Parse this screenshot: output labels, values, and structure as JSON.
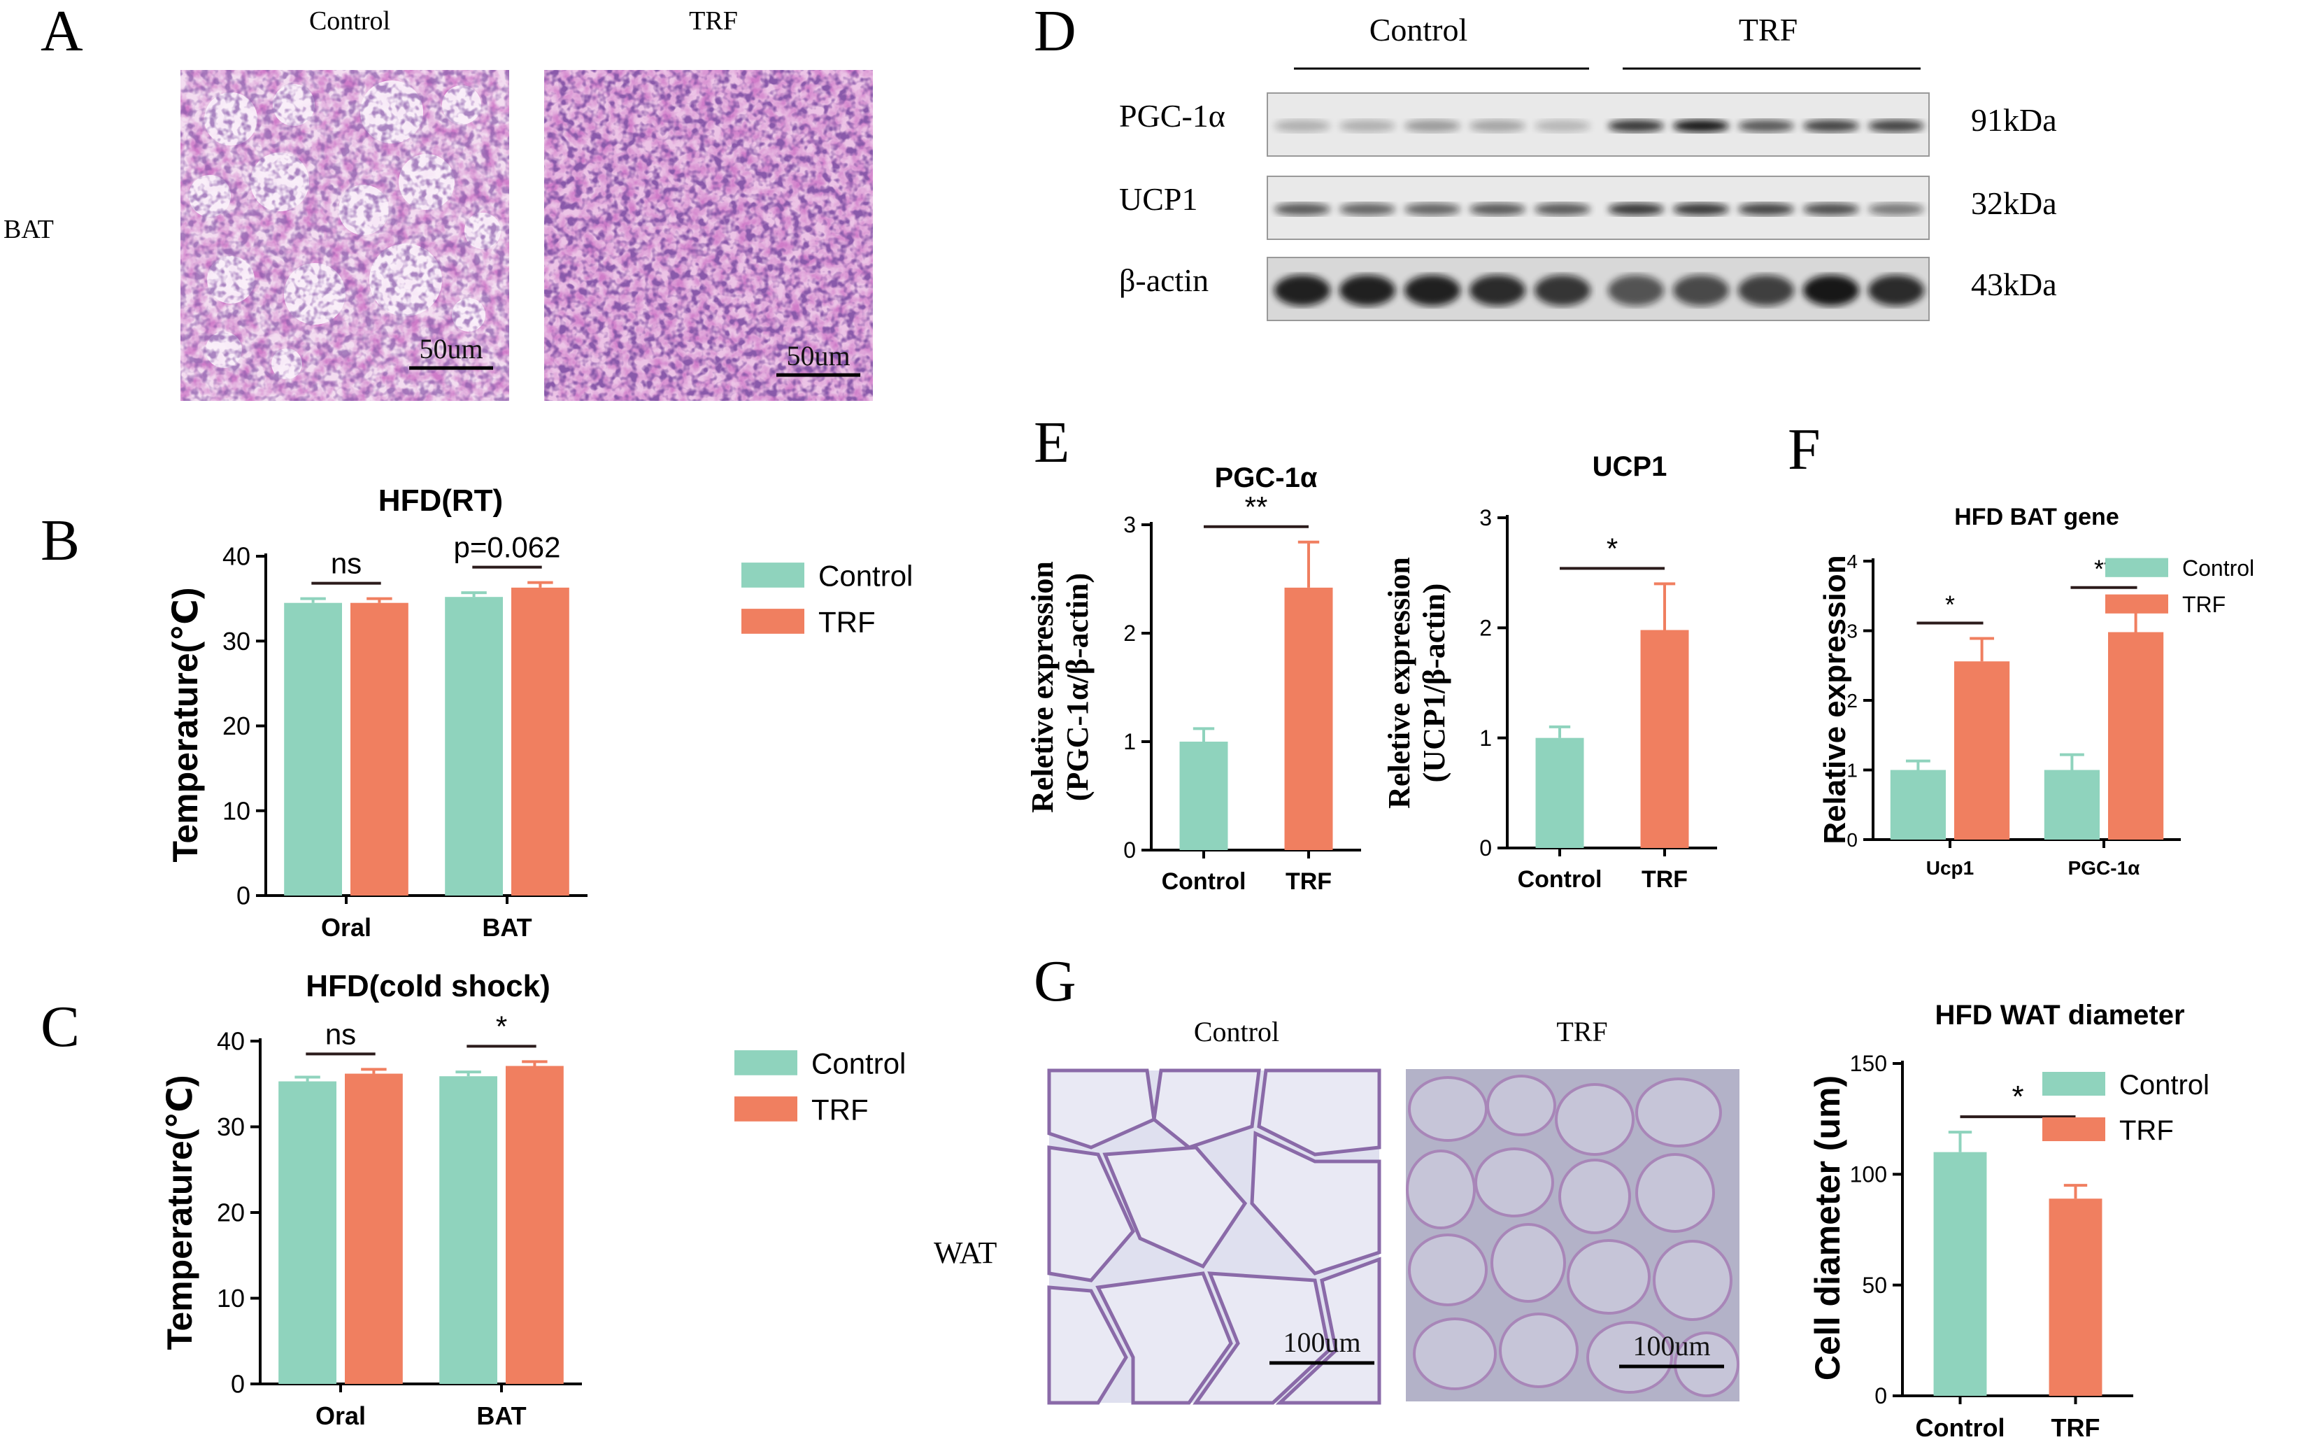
{
  "colors": {
    "control": "#8fd3bd",
    "trf": "#f07f60",
    "axis": "#000000",
    "sig": "#2b1b1b"
  },
  "panelA": {
    "letter": "A",
    "row_label": "BAT",
    "images": [
      {
        "label": "Control",
        "scale_text": "50um"
      },
      {
        "label": "TRF",
        "scale_text": "50um"
      }
    ]
  },
  "panelD": {
    "letter": "D",
    "groups": [
      "Control",
      "TRF"
    ],
    "rows": [
      {
        "name": "PGC-1α",
        "size": "91kDa"
      },
      {
        "name": "UCP1",
        "size": "32kDa"
      },
      {
        "name": "β-actin",
        "size": "43kDa"
      }
    ]
  },
  "panelG": {
    "letter": "G",
    "row_label": "WAT",
    "images": [
      {
        "label": "Control",
        "scale_text": "100um"
      },
      {
        "label": "TRF",
        "scale_text": "100um"
      }
    ]
  },
  "chart_data": [
    {
      "id": "B",
      "letter": "B",
      "type": "bar",
      "title": "HFD(RT)",
      "ylabel": "Temperature(℃)",
      "xlabel": "",
      "ylim": [
        0,
        40
      ],
      "yticks": [
        "0",
        "10",
        "20",
        "30",
        "40"
      ],
      "categories": [
        "Oral",
        "BAT"
      ],
      "series": [
        {
          "name": "Control",
          "values": [
            34.5,
            35.2
          ],
          "errors": [
            0.5,
            0.5
          ]
        },
        {
          "name": "TRF",
          "values": [
            34.5,
            36.3
          ],
          "errors": [
            0.5,
            0.6
          ]
        }
      ],
      "annotations": [
        "ns",
        "p=0.062"
      ],
      "legend_entries": [
        "Control",
        "TRF"
      ],
      "legend": "right"
    },
    {
      "id": "C",
      "letter": "C",
      "type": "bar",
      "title": "HFD(cold shock)",
      "ylabel": "Temperature(℃)",
      "xlabel": "",
      "ylim": [
        0,
        40
      ],
      "yticks": [
        "0",
        "10",
        "20",
        "30",
        "40"
      ],
      "categories": [
        "Oral",
        "BAT"
      ],
      "series": [
        {
          "name": "Control",
          "values": [
            35.3,
            35.9
          ],
          "errors": [
            0.5,
            0.5
          ]
        },
        {
          "name": "TRF",
          "values": [
            36.2,
            37.1
          ],
          "errors": [
            0.5,
            0.5
          ]
        }
      ],
      "annotations": [
        "ns",
        "*"
      ],
      "legend_entries": [
        "Control",
        "TRF"
      ],
      "legend": "right"
    },
    {
      "id": "E1",
      "letter": "E",
      "type": "bar",
      "title": "PGC-1α",
      "ylabel_lines": [
        "Reletive expression",
        "(PGC-1α/β-actin)"
      ],
      "xlabel": "",
      "ylim": [
        0,
        3
      ],
      "yticks": [
        "0",
        "1",
        "2",
        "3"
      ],
      "categories": [
        "Control",
        "TRF"
      ],
      "values": [
        1.0,
        2.42
      ],
      "errors": [
        0.12,
        0.42
      ],
      "annotations": [
        "**"
      ]
    },
    {
      "id": "E2",
      "type": "bar",
      "title": "UCP1",
      "ylabel_lines": [
        "Reletive expression",
        "(UCP1/β-actin)"
      ],
      "xlabel": "",
      "ylim": [
        0,
        3
      ],
      "yticks": [
        "0",
        "1",
        "2",
        "3"
      ],
      "categories": [
        "Control",
        "TRF"
      ],
      "values": [
        1.0,
        1.98
      ],
      "errors": [
        0.1,
        0.42
      ],
      "annotations": [
        "*"
      ]
    },
    {
      "id": "F",
      "letter": "F",
      "type": "bar",
      "title": "HFD BAT gene",
      "ylabel": "Relative expression",
      "xlabel": "",
      "ylim": [
        0,
        4
      ],
      "yticks": [
        "0",
        "1",
        "2",
        "3",
        "4"
      ],
      "categories": [
        "Ucp1",
        "PGC-1α"
      ],
      "series": [
        {
          "name": "Control",
          "values": [
            1.0,
            1.0
          ],
          "errors": [
            0.13,
            0.22
          ]
        },
        {
          "name": "TRF",
          "values": [
            2.56,
            2.98
          ],
          "errors": [
            0.33,
            0.42
          ]
        }
      ],
      "annotations": [
        "*",
        "**"
      ],
      "legend_entries": [
        "Control",
        "TRF"
      ],
      "legend": "top-right"
    },
    {
      "id": "G",
      "type": "bar",
      "title": "HFD WAT diameter",
      "ylabel": "Cell diameter  (um)",
      "xlabel": "",
      "ylim": [
        0,
        150
      ],
      "yticks": [
        "0",
        "50",
        "100",
        "150"
      ],
      "categories": [
        "Control",
        "TRF"
      ],
      "values": [
        110,
        89
      ],
      "errors": [
        9,
        6
      ],
      "annotations": [
        "*"
      ],
      "legend_entries": [
        "Control",
        "TRF"
      ],
      "legend": "right"
    }
  ]
}
